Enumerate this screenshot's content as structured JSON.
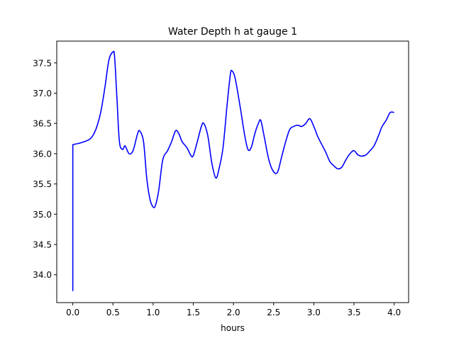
{
  "chart_data": {
    "type": "line",
    "title": "Water Depth h at gauge 1",
    "xlabel": "hours",
    "ylabel": "",
    "xlim": [
      -0.2,
      4.18
    ],
    "ylim": [
      33.54,
      37.86
    ],
    "xticks": [
      0.0,
      0.5,
      1.0,
      1.5,
      2.0,
      2.5,
      3.0,
      3.5,
      4.0
    ],
    "xtick_labels": [
      "0.0",
      "0.5",
      "1.0",
      "1.5",
      "2.0",
      "2.5",
      "3.0",
      "3.5",
      "4.0"
    ],
    "yticks": [
      34.0,
      34.5,
      35.0,
      35.5,
      36.0,
      36.5,
      37.0,
      37.5
    ],
    "ytick_labels": [
      "34.0",
      "34.5",
      "35.0",
      "35.5",
      "36.0",
      "36.5",
      "37.0",
      "37.5"
    ],
    "grid": false,
    "series": [
      {
        "name": "h",
        "color": "#0000ff",
        "x": [
          0,
          0,
          0.1,
          0.2,
          0.25,
          0.3,
          0.35,
          0.4,
          0.45,
          0.5,
          0.52,
          0.55,
          0.58,
          0.62,
          0.65,
          0.7,
          0.75,
          0.8,
          0.83,
          0.88,
          0.92,
          0.96,
          1.0,
          1.03,
          1.07,
          1.12,
          1.18,
          1.23,
          1.28,
          1.32,
          1.36,
          1.42,
          1.47,
          1.5,
          1.55,
          1.6,
          1.63,
          1.68,
          1.73,
          1.78,
          1.82,
          1.87,
          1.92,
          1.96,
          1.98,
          2.02,
          2.08,
          2.14,
          2.18,
          2.22,
          2.27,
          2.31,
          2.34,
          2.38,
          2.44,
          2.5,
          2.55,
          2.6,
          2.65,
          2.7,
          2.75,
          2.8,
          2.85,
          2.9,
          2.95,
          3.0,
          3.05,
          3.1,
          3.15,
          3.2,
          3.25,
          3.3,
          3.35,
          3.4,
          3.45,
          3.5,
          3.55,
          3.6,
          3.65,
          3.7,
          3.75,
          3.8,
          3.85,
          3.9,
          3.95,
          4.0
        ],
        "y": [
          33.73,
          36.15,
          36.18,
          36.23,
          36.3,
          36.45,
          36.7,
          37.1,
          37.55,
          37.68,
          37.6,
          36.9,
          36.2,
          36.07,
          36.13,
          36.0,
          36.05,
          36.3,
          36.38,
          36.2,
          35.6,
          35.25,
          35.12,
          35.15,
          35.4,
          35.9,
          36.05,
          36.2,
          36.38,
          36.33,
          36.2,
          36.1,
          35.97,
          35.97,
          36.2,
          36.45,
          36.5,
          36.3,
          35.85,
          35.6,
          35.75,
          36.1,
          36.8,
          37.3,
          37.37,
          37.25,
          36.8,
          36.3,
          36.07,
          36.1,
          36.35,
          36.5,
          36.55,
          36.3,
          35.9,
          35.7,
          35.7,
          35.95,
          36.2,
          36.4,
          36.45,
          36.47,
          36.45,
          36.5,
          36.58,
          36.45,
          36.28,
          36.15,
          36.02,
          35.87,
          35.8,
          35.75,
          35.78,
          35.9,
          36.0,
          36.05,
          35.98,
          35.96,
          35.98,
          36.05,
          36.13,
          36.28,
          36.45,
          36.55,
          36.68,
          36.68
        ]
      }
    ]
  }
}
